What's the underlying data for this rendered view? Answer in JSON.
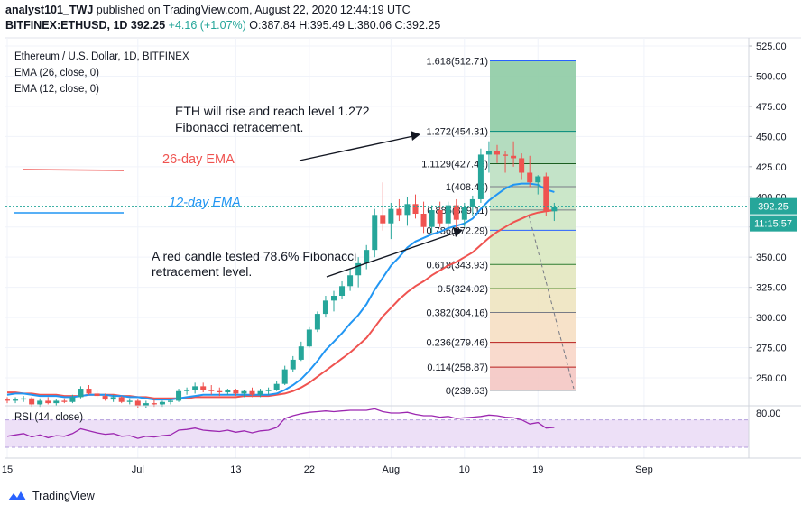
{
  "header": {
    "line1_user": "analyst101_TWJ",
    "line1_rest": "published on TradingView.com, August 22, 2020 12:44:19 UTC",
    "line2_symbol": "BITFINEX:ETHUSD, 1D",
    "line2_price": "392.25",
    "line2_change": "+4.16 (+1.07%)",
    "line2_ohlc": "O:387.84 H:395.49 L:380.06 C:392.25"
  },
  "footer": {
    "brand": "TradingView",
    "logo_icon": "tradingview-logo-icon"
  },
  "colors": {
    "up": "#26a69a",
    "down": "#ef5350",
    "ema26": "#ef5350",
    "ema12": "#2196f3",
    "rsi": "#9c27b0",
    "rsi_band": "#ede0f7"
  },
  "chart_data": [
    {
      "type": "candlestick",
      "title": "Ethereum / U.S. Dollar, 1D, BITFINEX",
      "legend": [
        "EMA (26, close, 0)",
        "EMA (12, close, 0)"
      ],
      "price_badge": "392.25",
      "countdown_badge": "11:15:57",
      "y_ticks": [
        250,
        275,
        300,
        325,
        350,
        375,
        400,
        425,
        450,
        475,
        500,
        525
      ],
      "y_tick_labels": [
        "250.00",
        "275.00",
        "300.00",
        "325.00",
        "350.00",
        "375.00",
        "400.00",
        "425.00",
        "450.00",
        "475.00",
        "500.00",
        "525.00"
      ],
      "ylim": [
        228,
        532
      ],
      "x_tick_labels": [
        "15",
        "Jul",
        "13",
        "22",
        "Aug",
        "10",
        "19",
        "Sep"
      ],
      "x_tick_day_index": [
        0,
        16,
        28,
        37,
        47,
        56,
        65,
        78
      ],
      "candles": [
        [
          232,
          234,
          229,
          231
        ],
        [
          231,
          234,
          229,
          232
        ],
        [
          232,
          235,
          230,
          233
        ],
        [
          233,
          234,
          226,
          228
        ],
        [
          228,
          233,
          226,
          231
        ],
        [
          231,
          234,
          228,
          229
        ],
        [
          229,
          232,
          227,
          231
        ],
        [
          231,
          233,
          229,
          230
        ],
        [
          230,
          236,
          229,
          234
        ],
        [
          234,
          243,
          233,
          241
        ],
        [
          241,
          244,
          236,
          237
        ],
        [
          237,
          240,
          233,
          235
        ],
        [
          235,
          237,
          231,
          232
        ],
        [
          232,
          236,
          230,
          234
        ],
        [
          234,
          235,
          229,
          230
        ],
        [
          230,
          233,
          228,
          231
        ],
        [
          231,
          232,
          225,
          227
        ],
        [
          227,
          231,
          225,
          229
        ],
        [
          229,
          232,
          226,
          228
        ],
        [
          228,
          231,
          226,
          230
        ],
        [
          230,
          233,
          228,
          231
        ],
        [
          231,
          241,
          230,
          239
        ],
        [
          239,
          242,
          236,
          240
        ],
        [
          240,
          246,
          237,
          243
        ],
        [
          243,
          246,
          238,
          240
        ],
        [
          240,
          244,
          236,
          239
        ],
        [
          239,
          242,
          235,
          238
        ],
        [
          238,
          241,
          236,
          240
        ],
        [
          240,
          241,
          235,
          237
        ],
        [
          237,
          240,
          234,
          239
        ],
        [
          239,
          242,
          234,
          236
        ],
        [
          236,
          241,
          234,
          239
        ],
        [
          239,
          242,
          236,
          240
        ],
        [
          240,
          247,
          239,
          245
        ],
        [
          245,
          260,
          244,
          257
        ],
        [
          257,
          268,
          255,
          265
        ],
        [
          265,
          280,
          264,
          276
        ],
        [
          276,
          292,
          275,
          290
        ],
        [
          290,
          305,
          288,
          303
        ],
        [
          303,
          318,
          300,
          314
        ],
        [
          314,
          322,
          305,
          318
        ],
        [
          318,
          330,
          315,
          326
        ],
        [
          326,
          340,
          322,
          335
        ],
        [
          335,
          350,
          325,
          345
        ],
        [
          345,
          360,
          340,
          356
        ],
        [
          356,
          390,
          350,
          385
        ],
        [
          385,
          412,
          372,
          378
        ],
        [
          378,
          395,
          365,
          390
        ],
        [
          390,
          398,
          380,
          385
        ],
        [
          385,
          400,
          376,
          394
        ],
        [
          394,
          402,
          382,
          386
        ],
        [
          386,
          396,
          370,
          375
        ],
        [
          375,
          393,
          370,
          389
        ],
        [
          389,
          396,
          375,
          378
        ],
        [
          378,
          396,
          374,
          393
        ],
        [
          393,
          398,
          372,
          381
        ],
        [
          381,
          395,
          375,
          392
        ],
        [
          392,
          401,
          384,
          398
        ],
        [
          398,
          440,
          395,
          435
        ],
        [
          435,
          446,
          420,
          438
        ],
        [
          438,
          443,
          428,
          435
        ],
        [
          435,
          438,
          420,
          434
        ],
        [
          434,
          446,
          425,
          432
        ],
        [
          432,
          436,
          414,
          420
        ],
        [
          420,
          434,
          408,
          412
        ],
        [
          412,
          418,
          402,
          417
        ],
        [
          417,
          420,
          384,
          388
        ],
        [
          388,
          395,
          380,
          392
        ]
      ],
      "ema26": [
        238,
        238,
        237,
        237,
        236,
        236,
        236,
        235,
        235,
        235,
        236,
        236,
        236,
        236,
        235,
        235,
        234,
        234,
        233,
        233,
        233,
        233,
        233,
        234,
        234,
        234,
        234,
        234,
        234,
        235,
        235,
        235,
        235,
        236,
        237,
        239,
        242,
        246,
        251,
        256,
        261,
        266,
        271,
        277,
        283,
        292,
        301,
        308,
        315,
        321,
        326,
        330,
        335,
        339,
        343,
        346,
        350,
        354,
        360,
        366,
        371,
        375,
        379,
        382,
        385,
        387,
        388,
        389
      ],
      "ema12": [
        236,
        237,
        237,
        236,
        235,
        235,
        235,
        234,
        234,
        235,
        236,
        236,
        236,
        235,
        235,
        234,
        234,
        233,
        232,
        232,
        232,
        233,
        234,
        235,
        236,
        236,
        236,
        236,
        236,
        236,
        236,
        236,
        236,
        237,
        240,
        244,
        249,
        256,
        264,
        273,
        280,
        287,
        295,
        302,
        311,
        323,
        333,
        343,
        350,
        358,
        363,
        366,
        369,
        371,
        374,
        376,
        378,
        382,
        390,
        397,
        402,
        407,
        410,
        411,
        411,
        410,
        406,
        404
      ],
      "fibonacci": {
        "levels": [
          0,
          0.114,
          0.236,
          0.382,
          0.5,
          0.618,
          0.786,
          0.886,
          1,
          1.1129,
          1.272,
          1.618
        ],
        "prices": [
          239.63,
          258.87,
          279.46,
          304.16,
          324.02,
          343.93,
          372.29,
          389.11,
          408.4,
          427.46,
          454.31,
          512.71
        ],
        "labels": [
          "0(239.63)",
          "0.114(258.87)",
          "0.236(279.46)",
          "0.382(304.16)",
          "0.5(324.02)",
          "0.618(343.93)",
          "0.786(372.29)",
          "0.886(389.11)",
          "1(408.40)",
          "1.1129(427.46)",
          "1.272(454.31)",
          "1.618(512.71)"
        ]
      },
      "annotations": {
        "ema26_label": "26-day EMA",
        "ema12_label": "12-day EMA",
        "note1_line1": "ETH will rise and reach level 1.272",
        "note1_line2": "Fibonacci retracement.",
        "note2_line1": "A red candle tested 78.6% Fibonacci",
        "note2_line2": "retracement level."
      }
    },
    {
      "type": "line",
      "title": "RSI (14, close)",
      "y_tick_labels": [
        "80.00"
      ],
      "ylim": [
        20,
        90
      ],
      "band": [
        30,
        70
      ],
      "values": [
        46,
        48,
        50,
        45,
        48,
        44,
        47,
        46,
        50,
        57,
        54,
        51,
        49,
        50,
        46,
        47,
        43,
        46,
        45,
        47,
        48,
        55,
        56,
        58,
        55,
        54,
        53,
        55,
        52,
        54,
        51,
        54,
        55,
        59,
        72,
        76,
        79,
        81,
        82,
        83,
        82,
        83,
        84,
        84,
        84,
        86,
        82,
        80,
        80,
        81,
        78,
        76,
        76,
        74,
        75,
        72,
        73,
        74,
        75,
        77,
        76,
        74,
        73,
        70,
        64,
        66,
        58,
        59
      ]
    }
  ]
}
